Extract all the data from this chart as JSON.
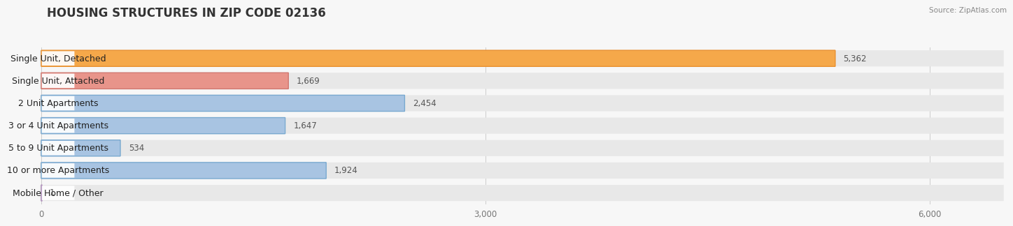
{
  "title": "HOUSING STRUCTURES IN ZIP CODE 02136",
  "source": "Source: ZipAtlas.com",
  "categories": [
    "Single Unit, Detached",
    "Single Unit, Attached",
    "2 Unit Apartments",
    "3 or 4 Unit Apartments",
    "5 to 9 Unit Apartments",
    "10 or more Apartments",
    "Mobile Home / Other"
  ],
  "values": [
    5362,
    1669,
    2454,
    1647,
    534,
    1924,
    1
  ],
  "bar_colors": [
    "#F5A84A",
    "#E8948A",
    "#A8C4E2",
    "#A8C4E2",
    "#A8C4E2",
    "#A8C4E2",
    "#C9AACE"
  ],
  "bar_edge_colors": [
    "#E89030",
    "#D07870",
    "#7AAAD0",
    "#7AAAD0",
    "#7AAAD0",
    "#7AAAD0",
    "#B090BC"
  ],
  "xlim_max": 6500,
  "xticks": [
    0,
    3000,
    6000
  ],
  "bg_color": "#f7f7f7",
  "row_bg_color": "#e8e8e8",
  "white_color": "#ffffff",
  "sep_color": "#ffffff",
  "title_fontsize": 12,
  "label_fontsize": 9,
  "value_fontsize": 8.5,
  "tick_fontsize": 8.5
}
